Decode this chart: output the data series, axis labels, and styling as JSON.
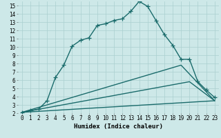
{
  "xlabel": "Humidex (Indice chaleur)",
  "background_color": "#cde8e8",
  "grid_color": "#aacfcf",
  "line_color": "#1a6b6b",
  "xlim": [
    -0.5,
    23.5
  ],
  "ylim": [
    2,
    15.5
  ],
  "xticks": [
    0,
    1,
    2,
    3,
    4,
    5,
    6,
    7,
    8,
    9,
    10,
    11,
    12,
    13,
    14,
    15,
    16,
    17,
    18,
    19,
    20,
    21,
    22,
    23
  ],
  "yticks": [
    2,
    3,
    4,
    5,
    6,
    7,
    8,
    9,
    10,
    11,
    12,
    13,
    14,
    15
  ],
  "line1_x": [
    0,
    1,
    2,
    3,
    4,
    5,
    6,
    7,
    8,
    9,
    10,
    11,
    12,
    13,
    14,
    15,
    16,
    17,
    18,
    19,
    20,
    21,
    22,
    23
  ],
  "line1_y": [
    2.1,
    2.3,
    2.5,
    3.5,
    6.3,
    7.8,
    10.1,
    10.8,
    11.1,
    12.6,
    12.8,
    13.2,
    13.4,
    14.3,
    15.5,
    14.9,
    13.2,
    11.5,
    10.2,
    8.5,
    8.5,
    5.8,
    4.8,
    3.9
  ],
  "line2_x": [
    0,
    19,
    23
  ],
  "line2_y": [
    2.1,
    7.8,
    3.5
  ],
  "line3_x": [
    0,
    20,
    23
  ],
  "line3_y": [
    2.1,
    5.8,
    3.5
  ],
  "line4_x": [
    0,
    23
  ],
  "line4_y": [
    2.1,
    3.5
  ],
  "fontsize_ticks": 5.5,
  "fontsize_label": 6.5
}
